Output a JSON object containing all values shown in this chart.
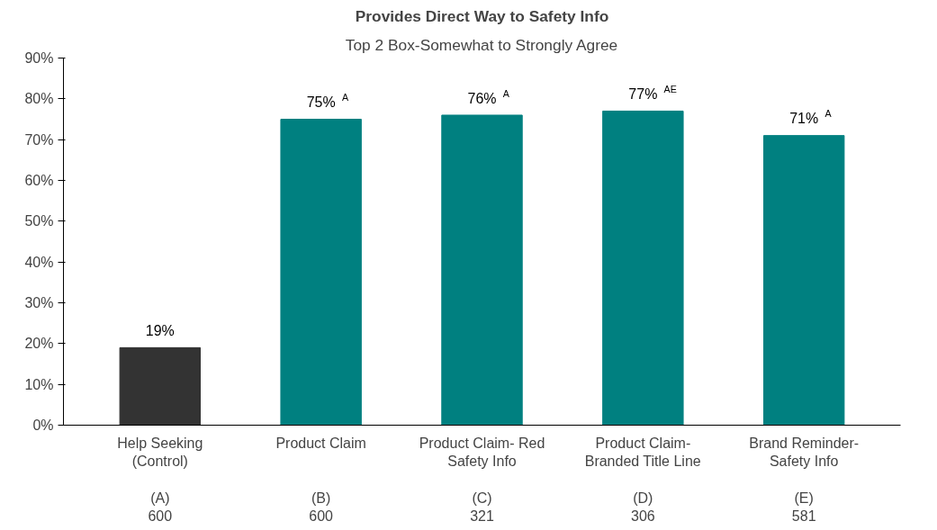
{
  "chart_data": {
    "type": "bar",
    "title": "Provides Direct Way to Safety Info",
    "subtitle": "Top 2 Box-Somewhat to Strongly Agree",
    "categories": [
      "Help Seeking\n(Control)\n\n(A)\n600",
      "Product Claim\n\n\n(B)\n600",
      "Product Claim- Red\nSafety Info\n\n(C)\n321",
      "Product Claim-\nBranded Title Line\n\n(D)\n306",
      "Brand Reminder-\nSafety Info\n\n(E)\n581"
    ],
    "values": [
      19,
      75,
      76,
      77,
      71
    ],
    "colors": [
      "#333333",
      "#008080",
      "#008080",
      "#008080",
      "#008080"
    ],
    "value_labels": [
      "19%",
      "75% $^{A}$",
      "76% $^{A}$",
      "77% $^{AE}$",
      "71% $^{A}$"
    ],
    "ylim": [
      0,
      90
    ],
    "yticks": [
      {
        "value": 0,
        "label": "0%"
      },
      {
        "value": 10,
        "label": "10%"
      },
      {
        "value": 20,
        "label": "20%"
      },
      {
        "value": 30,
        "label": "30%"
      },
      {
        "value": 40,
        "label": "40%"
      },
      {
        "value": 50,
        "label": "50%"
      },
      {
        "value": 60,
        "label": "60%"
      },
      {
        "value": 70,
        "label": "70%"
      },
      {
        "value": 80,
        "label": "80%"
      },
      {
        "value": 90,
        "label": "90%"
      }
    ],
    "grid": false
  }
}
